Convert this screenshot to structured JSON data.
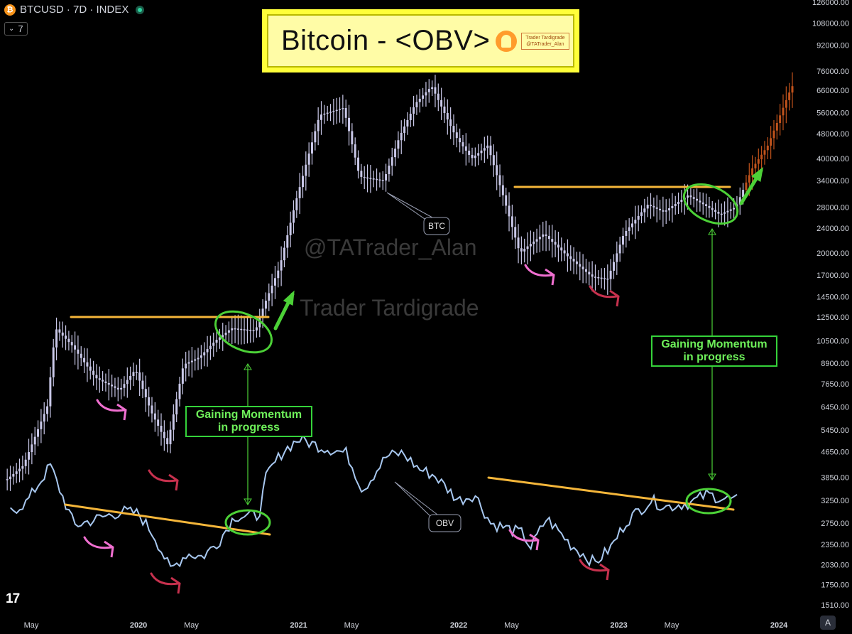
{
  "header": {
    "symbol_line": "BTCUSD · 7D · INDEX",
    "indicator_count": "7",
    "chevron": "chevron-down-icon",
    "coin_icon": "bitcoin-icon"
  },
  "title": {
    "text": "Bitcoin - <OBV>",
    "badge_line1": "Trader Tardigrade",
    "badge_line2": "@TATrader_Alan"
  },
  "watermarks": {
    "handle": "@TATrader_Alan",
    "name": "Trader Tardigrade"
  },
  "labels": {
    "btc": "BTC",
    "obv": "OBV",
    "momentum_line1": "Gaining Momentum",
    "momentum_line2": "in progress"
  },
  "axis_corner": "A",
  "colors": {
    "background": "#000000",
    "price_candles": "#c9c8e8",
    "extrapolated_candles": "#c1531c",
    "obv_line": "#a8c8f0",
    "resistance": "#f5b63a",
    "highlight": "#4cd137",
    "pink_arrow": "#f06fd0",
    "red_arrow": "#c7314e"
  },
  "chart_data": {
    "type": "line",
    "title": "Bitcoin - <OBV>",
    "y_scale": "log",
    "y_ticks": [
      "126000.00",
      "108000.00",
      "92000.00",
      "76000.00",
      "66000.00",
      "56000.00",
      "48000.00",
      "40000.00",
      "34000.00",
      "28000.00",
      "24000.00",
      "20000.00",
      "17000.00",
      "14500.00",
      "12500.00",
      "10500.00",
      "8900.00",
      "7650.00",
      "6450.00",
      "5450.00",
      "4650.00",
      "3850.00",
      "3250.00",
      "2750.00",
      "2350.00",
      "2030.00",
      "1750.00",
      "1510.00"
    ],
    "x_ticks": [
      "May",
      "2020",
      "May",
      "2021",
      "May",
      "2022",
      "May",
      "2023",
      "May",
      "2024"
    ],
    "x_ticks_t": [
      2019.33,
      2020,
      2020.33,
      2021,
      2021.33,
      2022,
      2022.33,
      2023,
      2023.33,
      2024
    ],
    "series": [
      {
        "name": "BTC",
        "x": [
          2019.2,
          2019.3,
          2019.45,
          2019.5,
          2019.6,
          2019.75,
          2019.9,
          2020.0,
          2020.1,
          2020.2,
          2020.3,
          2020.4,
          2020.5,
          2020.6,
          2020.75,
          2020.8,
          2020.9,
          2021.0,
          2021.15,
          2021.3,
          2021.4,
          2021.55,
          2021.65,
          2021.75,
          2021.85,
          2022.0,
          2022.1,
          2022.2,
          2022.3,
          2022.4,
          2022.45,
          2022.55,
          2022.7,
          2022.85,
          2022.95,
          2023.05,
          2023.2,
          2023.3,
          2023.45,
          2023.55,
          2023.65,
          2023.75,
          2023.85,
          2023.95,
          2024.1
        ],
        "y": [
          3800,
          4200,
          6500,
          11500,
          10200,
          8000,
          7300,
          8500,
          6200,
          4900,
          8800,
          9300,
          10500,
          11500,
          11300,
          13500,
          18000,
          29000,
          55000,
          58000,
          35000,
          34000,
          47000,
          60000,
          68000,
          47000,
          40000,
          44000,
          30000,
          20000,
          21000,
          23000,
          19500,
          16800,
          16500,
          23000,
          28500,
          27000,
          30500,
          28500,
          26500,
          28000,
          37000,
          44000,
          68000
        ]
      },
      {
        "name": "OBV",
        "x": [
          2019.2,
          2019.3,
          2019.45,
          2019.5,
          2019.6,
          2019.75,
          2019.9,
          2020.0,
          2020.1,
          2020.2,
          2020.3,
          2020.4,
          2020.5,
          2020.6,
          2020.75,
          2020.8,
          2020.9,
          2021.0,
          2021.15,
          2021.3,
          2021.4,
          2021.55,
          2021.65,
          2021.75,
          2021.85,
          2022.0,
          2022.1,
          2022.2,
          2022.3,
          2022.4,
          2022.45,
          2022.55,
          2022.7,
          2022.85,
          2022.95,
          2023.05,
          2023.2,
          2023.3,
          2023.45,
          2023.55,
          2023.65,
          2023.75
        ],
        "y": [
          3000,
          3200,
          4200,
          3600,
          2700,
          2850,
          3000,
          2950,
          2500,
          1950,
          2200,
          2150,
          2400,
          2900,
          2900,
          3900,
          4650,
          5100,
          4800,
          4600,
          3500,
          4500,
          4600,
          4100,
          3900,
          3250,
          3400,
          2750,
          2650,
          2550,
          2300,
          2850,
          2350,
          2050,
          2300,
          2800,
          3250,
          3100,
          3200,
          3400,
          3300,
          3250
        ]
      }
    ]
  }
}
